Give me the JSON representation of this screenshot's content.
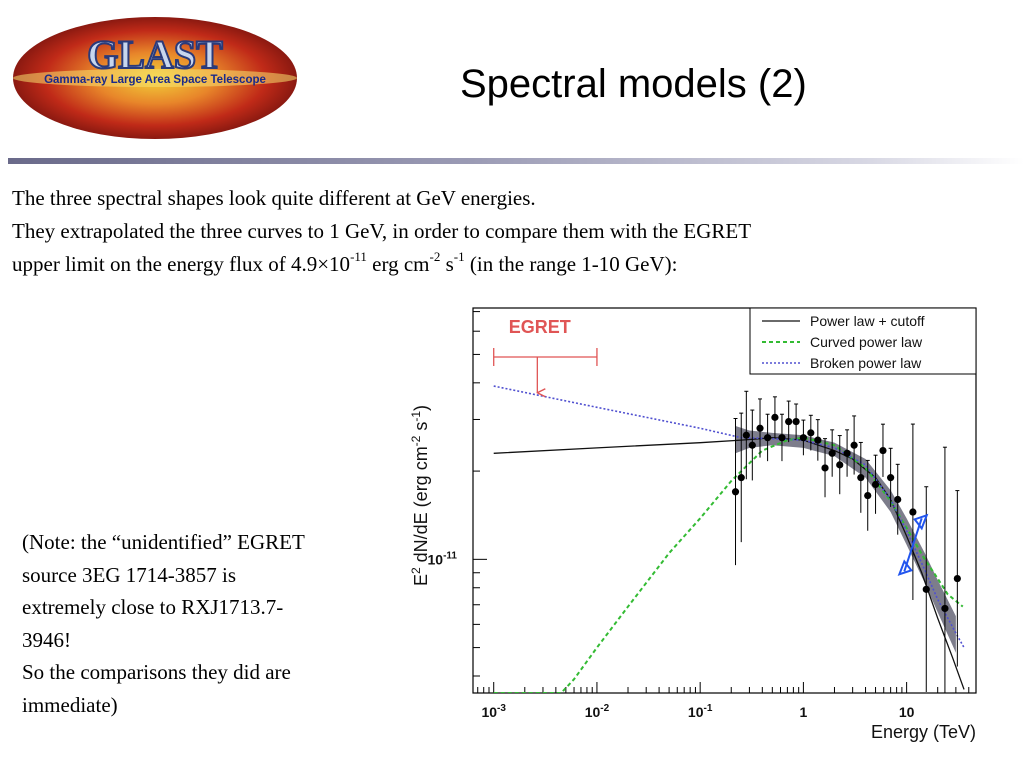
{
  "header": {
    "logo_text": "GLAST",
    "logo_subtitle": "Gamma-ray Large Area Space Telescope",
    "title": "Spectral models (2)"
  },
  "body": {
    "line1": "The three spectral shapes look quite different at GeV energies.",
    "line2": "They extrapolated the three curves to 1 GeV, in order to compare them with the EGRET",
    "line3_a": "upper limit on the energy flux of 4.9×10",
    "line3_exp1": "-11",
    "line3_b": " erg cm",
    "line3_exp2": "-2",
    "line3_c": " s",
    "line3_exp3": "-1",
    "line3_d": " (in the range 1-10 GeV):"
  },
  "note": {
    "lines": [
      "(Note: the “unidentified” EGRET",
      "source 3EG 1714-3857 is",
      "extremely close to RXJ1713.7-",
      "3946!",
      "So the comparisons they did are",
      "immediate)"
    ]
  },
  "chart_data": {
    "type": "line",
    "xscale": "log",
    "yscale": "log",
    "xlim": [
      0.00063,
      47
    ],
    "ylim": [
      3.5e-12,
      7.2e-11
    ],
    "xlabel": "Energy (TeV)",
    "ylabel_parts": [
      "E",
      "2",
      " dN/dE (erg cm",
      "-2",
      " s",
      "-1",
      ")"
    ],
    "xtick_labels": [
      {
        "x": 0.001,
        "base": "10",
        "exp": "-3"
      },
      {
        "x": 0.01,
        "base": "10",
        "exp": "-2"
      },
      {
        "x": 0.1,
        "base": "10",
        "exp": "-1"
      },
      {
        "x": 1,
        "base": "1",
        "exp": ""
      },
      {
        "x": 10,
        "base": "10",
        "exp": ""
      }
    ],
    "ytick_labels": [
      {
        "y": 1e-11,
        "base": "10",
        "exp": "-11"
      }
    ],
    "legend": {
      "position": "top-right",
      "entries": [
        {
          "name": "Power law + cutoff",
          "color": "#111111",
          "style": "solid"
        },
        {
          "name": "Curved power law",
          "color": "#33bb33",
          "style": "dashed"
        },
        {
          "name": "Broken power law",
          "color": "#5050d0",
          "style": "dashdot"
        }
      ]
    },
    "series": [
      {
        "name": "Power law + cutoff",
        "color": "#111111",
        "x": [
          0.001,
          0.01,
          0.1,
          0.25,
          0.5,
          1,
          2,
          3,
          5,
          7,
          10,
          14,
          20,
          28,
          36
        ],
        "y": [
          2.3e-11,
          2.4e-11,
          2.5e-11,
          2.55e-11,
          2.6e-11,
          2.55e-11,
          2.35e-11,
          2.2e-11,
          1.9e-11,
          1.6e-11,
          1.2e-11,
          9e-12,
          6.3e-12,
          4.6e-12,
          3.6e-12
        ]
      },
      {
        "name": "Curved power law",
        "color": "#33bb33",
        "x": [
          0.001,
          0.0045,
          0.006,
          0.01,
          0.02,
          0.05,
          0.1,
          0.2,
          0.4,
          0.7,
          1,
          2,
          4,
          7,
          10,
          15,
          20,
          25,
          35
        ],
        "y": [
          3.5e-12,
          3.5e-12,
          3.9e-12,
          5e-12,
          6.9e-12,
          1.05e-11,
          1.38e-11,
          1.85e-11,
          2.35e-11,
          2.55e-11,
          2.6e-11,
          2.45e-11,
          2.05e-11,
          1.58e-11,
          1.28e-11,
          1e-11,
          8.6e-12,
          7.6e-12,
          6.9e-12
        ]
      },
      {
        "name": "Broken power law",
        "color": "#5050d0",
        "x": [
          0.001,
          0.01,
          0.1,
          0.25,
          0.5,
          1,
          2,
          4,
          7,
          10,
          15,
          20,
          30,
          36
        ],
        "y": [
          3.9e-11,
          3.3e-11,
          2.8e-11,
          2.6e-11,
          2.58e-11,
          2.55e-11,
          2.4e-11,
          2.1e-11,
          1.6e-11,
          1.25e-11,
          9.2e-12,
          7.3e-12,
          5.6e-12,
          5e-12
        ]
      }
    ],
    "points": {
      "x": [
        0.22,
        0.25,
        0.28,
        0.32,
        0.38,
        0.45,
        0.53,
        0.62,
        0.72,
        0.85,
        1.0,
        1.18,
        1.38,
        1.62,
        1.9,
        2.25,
        2.65,
        3.1,
        3.6,
        4.2,
        5.0,
        5.9,
        7.0,
        8.2,
        11.5,
        15.5,
        23.5,
        31.0
      ],
      "y": [
        1.7e-11,
        1.9e-11,
        2.65e-11,
        2.45e-11,
        2.8e-11,
        2.6e-11,
        3.05e-11,
        2.6e-11,
        2.95e-11,
        2.95e-11,
        2.6e-11,
        2.7e-11,
        2.55e-11,
        2.05e-11,
        2.3e-11,
        2.1e-11,
        2.3e-11,
        2.45e-11,
        1.9e-11,
        1.65e-11,
        1.8e-11,
        2.35e-11,
        1.9e-11,
        1.6e-11,
        1.45e-11,
        7.9e-12,
        6.8e-12,
        8.6e-12
      ],
      "yerr": [
        0.25,
        0.22,
        0.15,
        0.12,
        0.1,
        0.08,
        0.07,
        0.08,
        0.07,
        0.06,
        0.06,
        0.06,
        0.07,
        0.1,
        0.08,
        0.1,
        0.08,
        0.1,
        0.12,
        0.12,
        0.1,
        0.09,
        0.1,
        0.12,
        0.3,
        0.35,
        0.55,
        0.3
      ]
    },
    "band": {
      "x": [
        0.22,
        0.3,
        0.5,
        1,
        2,
        4,
        7,
        10,
        15,
        20,
        30
      ],
      "y_low": [
        2.3e-11,
        2.4e-11,
        2.45e-11,
        2.4e-11,
        2.25e-11,
        1.9e-11,
        1.45e-11,
        1.12e-11,
        8.3e-12,
        6.6e-12,
        4.8e-12
      ],
      "y_high": [
        2.85e-11,
        2.75e-11,
        2.7e-11,
        2.65e-11,
        2.5e-11,
        2.2e-11,
        1.72e-11,
        1.38e-11,
        1.05e-11,
        8.5e-12,
        6.4e-12
      ],
      "color": "#666677"
    },
    "annotations": {
      "egret_label": "EGRET",
      "egret_color": "#e05555",
      "egret_limit": {
        "x_min": 0.001,
        "x_max": 0.01,
        "y": 4.9e-11,
        "arrow_to": 3.7e-11
      },
      "blue_arrow_color": "#2255ee"
    }
  }
}
